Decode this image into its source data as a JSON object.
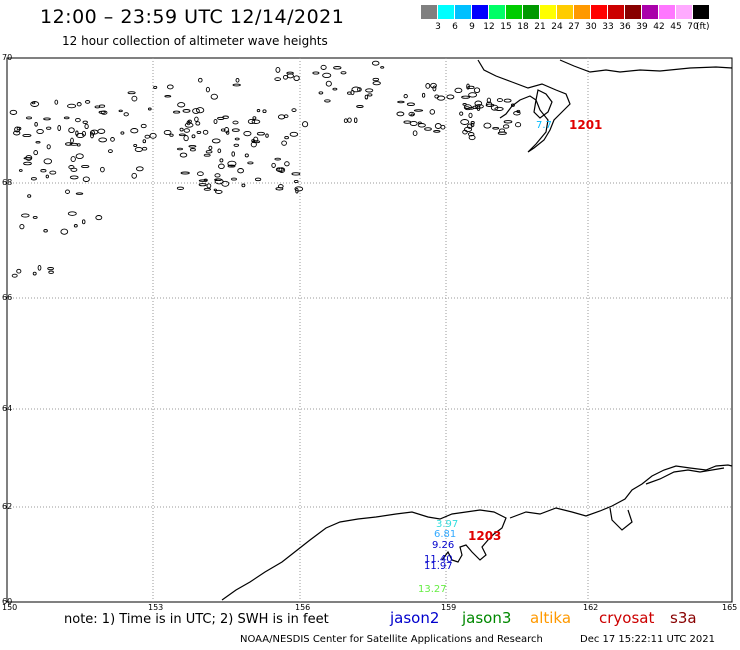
{
  "header": {
    "title": "12:00 – 23:59 UTC 12/14/2021",
    "subtitle": "12 hour collection of altimeter wave heights"
  },
  "legend": {
    "colors": [
      "#808080",
      "#00ffff",
      "#00c0ff",
      "#0000ff",
      "#00ff66",
      "#00cc00",
      "#009900",
      "#ffff00",
      "#ffcc00",
      "#ff9900",
      "#ff0000",
      "#cc0000",
      "#880000",
      "#aa00aa",
      "#ff77ff",
      "#ffaaff",
      "#000000"
    ],
    "labels": [
      "3",
      "6",
      "9",
      "12",
      "15",
      "18",
      "21",
      "24",
      "27",
      "30",
      "33",
      "36",
      "39",
      "42",
      "45",
      "70"
    ],
    "unit": "(ft)"
  },
  "axes": {
    "lat_labels": [
      "70",
      "68",
      "66",
      "64",
      "62",
      "60"
    ],
    "lon_labels": [
      "150",
      "153",
      "156",
      "159",
      "162",
      "165"
    ]
  },
  "observations": [
    {
      "text": "7.7",
      "color": "#00bbff"
    },
    {
      "text": "1201",
      "color": "#e00000"
    },
    {
      "text": "3.97",
      "color": "#33dddd"
    },
    {
      "text": "6.81",
      "color": "#33aaff"
    },
    {
      "text": "9.26",
      "color": "#0000cc"
    },
    {
      "text": "11.40",
      "color": "#0000cc"
    },
    {
      "text": "11.97",
      "color": "#0000cc"
    },
    {
      "text": "1203",
      "color": "#e00000"
    },
    {
      "text": "13.27",
      "color": "#66ee44"
    }
  ],
  "footer": {
    "note": "note:  1) Time is in UTC; 2) SWH is in feet",
    "satellites": [
      {
        "name": "jason2",
        "color": "#0000cc"
      },
      {
        "name": "jason3",
        "color": "#008800"
      },
      {
        "name": "altika",
        "color": "#ff9900"
      },
      {
        "name": "cryosat",
        "color": "#cc0000"
      },
      {
        "name": "s3a",
        "color": "#880000"
      }
    ],
    "credit": "NOAA/NESDIS Center for Satellite Applications and Research",
    "timestamp": "Dec 17 15:22:11 UTC 2021"
  }
}
